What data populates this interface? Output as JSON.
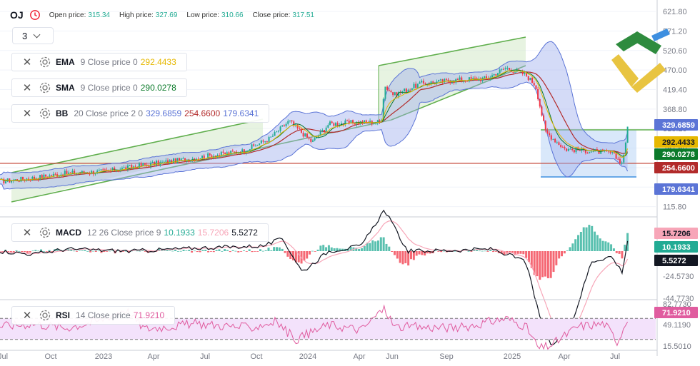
{
  "symbol": "OJ",
  "header": {
    "open_label": "Open price:",
    "open_value": "315.34",
    "high_label": "High price:",
    "high_value": "327.69",
    "low_label": "Low price:",
    "low_value": "310.66",
    "close_label": "Close price:",
    "close_value": "317.51"
  },
  "timeframe": {
    "value": "3"
  },
  "indicators": {
    "ema": {
      "name": "EMA",
      "params": "9 Close price 0",
      "value": "292.4433"
    },
    "sma": {
      "name": "SMA",
      "params": "9 Close price 0",
      "value": "290.0278"
    },
    "bb": {
      "name": "BB",
      "params": "20 Close price 2 0",
      "upper": "329.6859",
      "middle": "254.6600",
      "lower": "179.6341"
    },
    "macd": {
      "name": "MACD",
      "params": "12 26 Close price 9",
      "macd": "10.1933",
      "signal": "15.7206",
      "hist": "5.5272"
    },
    "rsi": {
      "name": "RSI",
      "params": "14 Close price",
      "value": "71.9210"
    }
  },
  "colors": {
    "up": "#22ab94",
    "down": "#f23645",
    "ema": "#e6b800",
    "sma": "#0b7a2a",
    "bb_upper": "#5b74d6",
    "bb_middle": "#b22a2a",
    "bb_fill": "#9fb0ee",
    "channel": "#5fae4c",
    "support": "#c0392b",
    "rsi": "#e05c9f",
    "macd_signal": "#f7a6b8"
  },
  "chart_data": [
    {
      "type": "candlestick",
      "title": "OJ",
      "series": [
        {
          "name": "BB",
          "description": "Bollinger Bands 20, upper/lower band envelope",
          "lower": "179.6341",
          "middle": "254.6600",
          "upper": "329.6859"
        },
        {
          "name": "EMA",
          "last_value": 292.4433
        },
        {
          "name": "SMA",
          "last_value": 290.0278
        }
      ],
      "close": [
        [
          0,
          181
        ],
        [
          0.05,
          190
        ],
        [
          0.1,
          202
        ],
        [
          0.16,
          207
        ],
        [
          0.22,
          224
        ],
        [
          0.27,
          235
        ],
        [
          0.32,
          248
        ],
        [
          0.37,
          260
        ],
        [
          0.41,
          292
        ],
        [
          0.44,
          338
        ],
        [
          0.475,
          283
        ],
        [
          0.5,
          330
        ],
        [
          0.54,
          334
        ],
        [
          0.58,
          335
        ],
        [
          0.585,
          430
        ],
        [
          0.6,
          405
        ],
        [
          0.64,
          435
        ],
        [
          0.7,
          445
        ],
        [
          0.74,
          448
        ],
        [
          0.77,
          476
        ],
        [
          0.8,
          458
        ],
        [
          0.815,
          430
        ],
        [
          0.83,
          310
        ],
        [
          0.86,
          265
        ],
        [
          0.9,
          260
        ],
        [
          0.93,
          255
        ],
        [
          0.947,
          228
        ],
        [
          0.955,
          317.51
        ]
      ],
      "x_ticks": [
        "Jul",
        "Oct",
        "2023",
        "Apr",
        "Jul",
        "Oct",
        "2024",
        "Apr",
        "Jun",
        "Sep",
        "2025",
        "Apr",
        "Jul"
      ],
      "y_ticks": [
        "621.80",
        "571.20",
        "520.60",
        "470.00",
        "419.40",
        "368.80",
        "318.20",
        "267.60",
        "217.00",
        "166.40",
        "115.80"
      ],
      "price_labels": [
        {
          "value": "329.6859"
        },
        {
          "value": "292.4433"
        },
        {
          "value": "290.0278"
        },
        {
          "value": "254.6600"
        },
        {
          "value": "179.6341"
        }
      ],
      "annotations": [
        {
          "type": "channel",
          "description": "rising trend channel 2022-2023"
        },
        {
          "type": "channel",
          "description": "rising trend channel 2024"
        },
        {
          "type": "range-box",
          "description": "2025 consolidation range"
        },
        {
          "type": "horizontal-line",
          "price": 228
        }
      ]
    },
    {
      "type": "line",
      "title": "MACD",
      "y_ticks": [
        "-24.5730",
        "-44.7730"
      ],
      "macd_shape": [
        [
          0,
          0
        ],
        [
          0.05,
          -3
        ],
        [
          0.1,
          2
        ],
        [
          0.2,
          0
        ],
        [
          0.3,
          3
        ],
        [
          0.4,
          5
        ],
        [
          0.43,
          12
        ],
        [
          0.46,
          -20
        ],
        [
          0.5,
          0
        ],
        [
          0.55,
          5
        ],
        [
          0.585,
          40
        ],
        [
          0.62,
          0
        ],
        [
          0.7,
          1
        ],
        [
          0.75,
          2
        ],
        [
          0.8,
          -10
        ],
        [
          0.82,
          -60
        ],
        [
          0.84,
          -92
        ],
        [
          0.87,
          -70
        ],
        [
          0.9,
          -10
        ],
        [
          0.93,
          -5
        ],
        [
          0.947,
          -20
        ],
        [
          0.955,
          10.1933
        ]
      ],
      "price_labels": [
        {
          "value": "15.7206"
        },
        {
          "value": "10.1933"
        },
        {
          "value": "5.5272"
        }
      ]
    },
    {
      "type": "line",
      "title": "RSI",
      "y_ticks": [
        "82.7730",
        "49.1190",
        "15.5010"
      ],
      "rsi_shape": [
        [
          0,
          55
        ],
        [
          0.05,
          60
        ],
        [
          0.1,
          52
        ],
        [
          0.15,
          65
        ],
        [
          0.19,
          88
        ],
        [
          0.22,
          50
        ],
        [
          0.3,
          60
        ],
        [
          0.38,
          52
        ],
        [
          0.42,
          64
        ],
        [
          0.45,
          30
        ],
        [
          0.5,
          58
        ],
        [
          0.55,
          48
        ],
        [
          0.585,
          90
        ],
        [
          0.6,
          54
        ],
        [
          0.7,
          52
        ],
        [
          0.77,
          70
        ],
        [
          0.8,
          55
        ],
        [
          0.82,
          12
        ],
        [
          0.84,
          20
        ],
        [
          0.88,
          55
        ],
        [
          0.92,
          60
        ],
        [
          0.94,
          25
        ],
        [
          0.955,
          71.921
        ]
      ],
      "overbought": 70,
      "oversold": 30,
      "price_labels": [
        {
          "value": "71.9210"
        }
      ]
    }
  ],
  "logo": {
    "name": "brand-logo"
  }
}
